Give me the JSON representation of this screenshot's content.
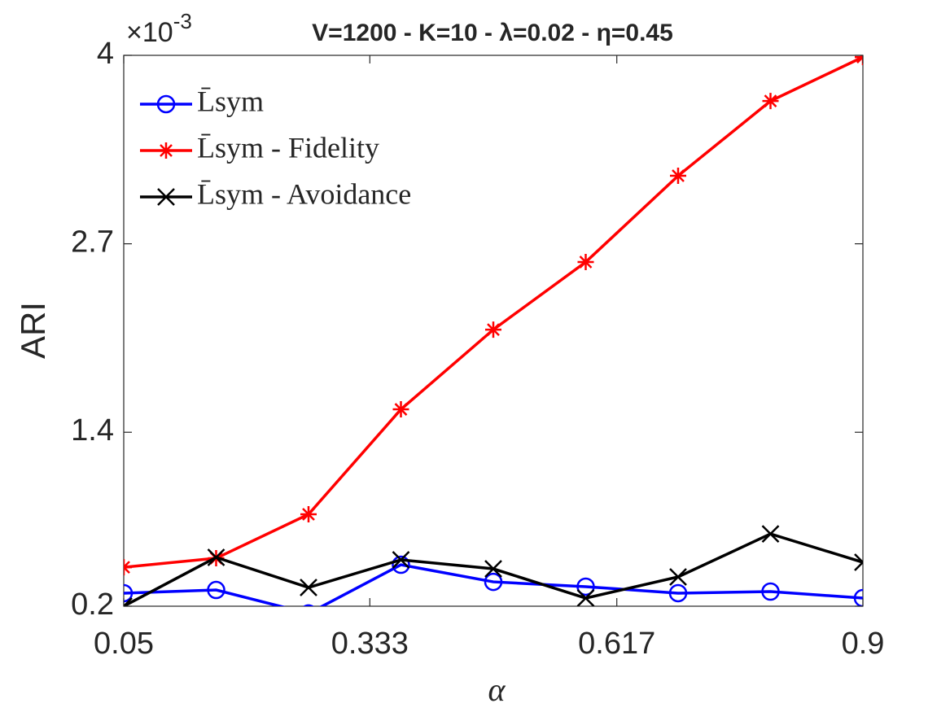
{
  "chart_data": {
    "type": "line",
    "title": "V=1200 - K=10 - λ=0.02 - η=0.45",
    "axis_multiplier": {
      "base": "×10",
      "power": "-3"
    },
    "xlabel": "α",
    "ylabel": "ARI",
    "x": [
      0.05,
      0.15625,
      0.2625,
      0.36875,
      0.475,
      0.58125,
      0.6875,
      0.79375,
      0.9
    ],
    "series": [
      {
        "name": "L̄sym",
        "color": "#0000ff",
        "marker": "circle",
        "values": [
          0.29,
          0.312,
          0.15,
          0.486,
          0.368,
          0.335,
          0.29,
          0.301,
          0.256
        ]
      },
      {
        "name": "L̄sym - Fidelity",
        "color": "#ff0000",
        "marker": "asterisk",
        "values": [
          0.469,
          0.531,
          0.834,
          1.558,
          2.108,
          2.574,
          3.169,
          3.685,
          3.988
        ]
      },
      {
        "name": "L̄sym - Avoidance",
        "color": "#000000",
        "marker": "x",
        "values": [
          0.2,
          0.537,
          0.329,
          0.52,
          0.458,
          0.256,
          0.402,
          0.699,
          0.503
        ]
      }
    ],
    "xlim": [
      0.05,
      0.9
    ],
    "xticks": [
      0.05,
      0.333,
      0.617,
      0.9
    ],
    "ylim": [
      0.2,
      4
    ],
    "yticks": [
      0.2,
      1.4,
      2.7,
      4
    ],
    "legend": "upper left",
    "grid": false
  }
}
